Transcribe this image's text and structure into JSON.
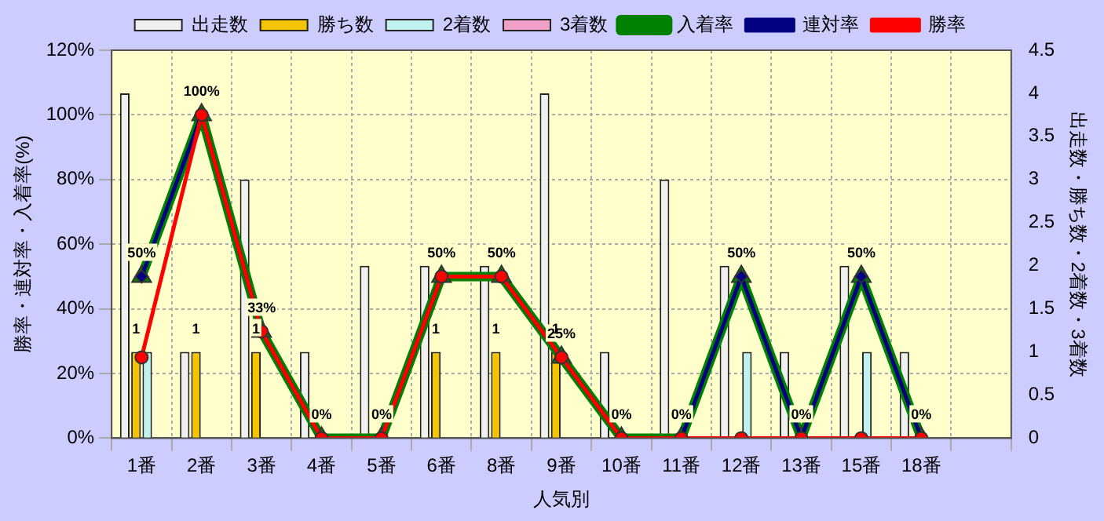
{
  "chart_data": {
    "type": "bar",
    "xlabel": "人気別",
    "ylabel": "勝率・連対率・入着率(%)",
    "y2label": "出走数・勝ち数・2着数・3着数",
    "categories": [
      "1番",
      "2番",
      "3番",
      "4番",
      "5番",
      "6番",
      "8番",
      "9番",
      "10番",
      "11番",
      "12番",
      "13番",
      "15番",
      "18番",
      null
    ],
    "series": [
      {
        "name": "出走数",
        "axis": "y2",
        "color": "#f0f0f0",
        "values": [
          4,
          1,
          3,
          1,
          2,
          2,
          2,
          4,
          1,
          3,
          2,
          1,
          2,
          1,
          null
        ]
      },
      {
        "name": "勝ち数",
        "axis": "y2",
        "color": "#f5c400",
        "values": [
          1,
          1,
          1,
          0,
          0,
          1,
          1,
          1,
          0,
          0,
          0,
          0,
          0,
          0,
          null
        ],
        "value_labels": [
          "1",
          "1",
          "1",
          null,
          null,
          "1",
          "1",
          "1",
          null,
          null,
          null,
          null,
          null,
          null,
          null
        ]
      },
      {
        "name": "2着数",
        "axis": "y2",
        "color": "#c0f0f0",
        "values": [
          1,
          0,
          0,
          0,
          0,
          0,
          0,
          0,
          0,
          0,
          1,
          0,
          1,
          0,
          null
        ]
      },
      {
        "name": "3着数",
        "axis": "y2",
        "color": "#f0a0c8",
        "values": [
          0,
          0,
          0,
          0,
          0,
          0,
          0,
          0,
          0,
          0,
          0,
          0,
          0,
          0,
          null
        ]
      },
      {
        "name": "入着率",
        "type": "line",
        "axis": "y",
        "color": "#008000",
        "marker": "triangle",
        "values": [
          50,
          100,
          33,
          0,
          0,
          50,
          50,
          25,
          0,
          0,
          50,
          0,
          50,
          0,
          null
        ],
        "value_labels": [
          "50%",
          "100%",
          "33%",
          "0%",
          "0%",
          "50%",
          "50%",
          "25%",
          "0%",
          "0%",
          "50%",
          "0%",
          "50%",
          "0%",
          null
        ]
      },
      {
        "name": "連対率",
        "type": "line",
        "axis": "y",
        "color": "#000080",
        "marker": "diamond",
        "values": [
          50,
          100,
          33,
          0,
          0,
          50,
          50,
          25,
          0,
          0,
          50,
          0,
          50,
          0,
          null
        ]
      },
      {
        "name": "勝率",
        "type": "line",
        "axis": "y",
        "color": "#ff0000",
        "marker": "circle",
        "values": [
          25,
          100,
          33,
          0,
          0,
          50,
          50,
          25,
          0,
          0,
          0,
          0,
          0,
          0,
          null
        ]
      }
    ],
    "ylim": [
      0,
      120
    ],
    "yticks": [
      {
        "value": 0,
        "label": "0%"
      },
      {
        "value": 20,
        "label": "20%"
      },
      {
        "value": 40,
        "label": "40%"
      },
      {
        "value": 60,
        "label": "60%"
      },
      {
        "value": 80,
        "label": "80%"
      },
      {
        "value": 100,
        "label": "100%"
      },
      {
        "value": 120,
        "label": "120%"
      }
    ],
    "y2lim": [
      0,
      4.5
    ],
    "y2ticks": [
      0,
      0.5,
      1,
      1.5,
      2,
      2.5,
      3,
      3.5,
      4,
      4.5
    ],
    "grid": true,
    "legend": "top",
    "line_style": "solid"
  }
}
